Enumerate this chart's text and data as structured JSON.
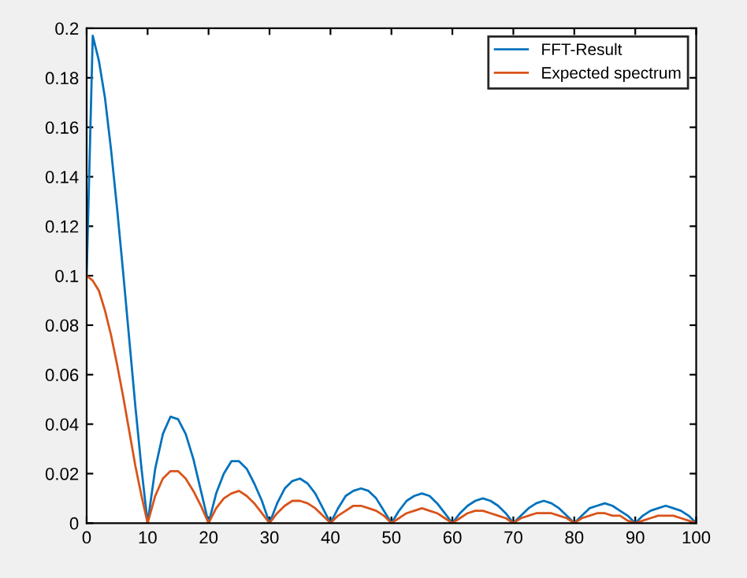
{
  "chart_data": {
    "type": "line",
    "legend": "top right",
    "grid": false,
    "line_style": "solid",
    "marker": "none",
    "x": [
      0,
      1,
      2,
      3,
      4,
      5,
      6,
      7,
      8,
      9,
      10,
      11.25,
      12.5,
      13.75,
      15,
      16.25,
      17.5,
      18.75,
      20,
      21.25,
      22.5,
      23.75,
      25,
      26.25,
      27.5,
      28.75,
      30,
      31.25,
      32.5,
      33.75,
      35,
      36.25,
      37.5,
      38.75,
      40,
      41.25,
      42.5,
      43.75,
      45,
      46.25,
      47.5,
      48.75,
      50,
      51.25,
      52.5,
      53.75,
      55,
      56.25,
      57.5,
      58.75,
      60,
      61.25,
      62.5,
      63.75,
      65,
      66.25,
      67.5,
      68.75,
      70,
      71.25,
      72.5,
      73.75,
      75,
      76.25,
      77.5,
      78.75,
      80,
      81.25,
      82.5,
      83.75,
      85,
      86.25,
      87.5,
      88.75,
      90,
      91.25,
      92.5,
      93.75,
      95,
      96.25,
      97.5,
      98.75,
      100
    ],
    "series": [
      {
        "name": "FFT-Result",
        "color": "#0072bd",
        "values": [
          0.1,
          0.197,
          0.187,
          0.172,
          0.151,
          0.127,
          0.101,
          0.074,
          0.047,
          0.022,
          0,
          0.022,
          0.036,
          0.043,
          0.042,
          0.036,
          0.026,
          0.013,
          0,
          0.012,
          0.02,
          0.025,
          0.025,
          0.022,
          0.016,
          0.009,
          0,
          0.008,
          0.014,
          0.017,
          0.018,
          0.016,
          0.012,
          0.006,
          0,
          0.006,
          0.011,
          0.013,
          0.014,
          0.013,
          0.01,
          0.005,
          0,
          0.005,
          0.009,
          0.011,
          0.012,
          0.011,
          0.008,
          0.004,
          0,
          0.004,
          0.007,
          0.009,
          0.01,
          0.009,
          0.007,
          0.004,
          0,
          0.003,
          0.006,
          0.008,
          0.009,
          0.008,
          0.006,
          0.003,
          0,
          0.003,
          0.006,
          0.007,
          0.008,
          0.007,
          0.005,
          0.003,
          0,
          0.003,
          0.005,
          0.006,
          0.007,
          0.006,
          0.005,
          0.003,
          0
        ]
      },
      {
        "name": "Expected spectrum",
        "color": "#d95319",
        "values": [
          0.1,
          0.098,
          0.094,
          0.086,
          0.076,
          0.064,
          0.051,
          0.037,
          0.023,
          0.011,
          0,
          0.011,
          0.018,
          0.021,
          0.021,
          0.018,
          0.013,
          0.007,
          0,
          0.006,
          0.01,
          0.012,
          0.013,
          0.011,
          0.008,
          0.004,
          0,
          0.004,
          0.007,
          0.009,
          0.009,
          0.008,
          0.006,
          0.003,
          0,
          0.003,
          0.005,
          0.007,
          0.007,
          0.006,
          0.005,
          0.003,
          0,
          0.002,
          0.004,
          0.005,
          0.006,
          0.005,
          0.004,
          0.002,
          0,
          0.002,
          0.004,
          0.005,
          0.005,
          0.004,
          0.003,
          0.002,
          0,
          0.002,
          0.003,
          0.004,
          0.004,
          0.004,
          0.003,
          0.002,
          0,
          0.002,
          0.003,
          0.004,
          0.004,
          0.003,
          0.003,
          0.001,
          0,
          0.001,
          0.002,
          0.003,
          0.003,
          0.003,
          0.002,
          0.001,
          0
        ]
      }
    ],
    "xlim": [
      0,
      100
    ],
    "ylim": [
      0,
      0.2
    ],
    "xticks": [
      0,
      10,
      20,
      30,
      40,
      50,
      60,
      70,
      80,
      90,
      100
    ],
    "yticks": [
      0,
      0.02,
      0.04,
      0.06,
      0.08,
      0.1,
      0.12,
      0.14,
      0.16,
      0.18,
      0.2
    ]
  }
}
